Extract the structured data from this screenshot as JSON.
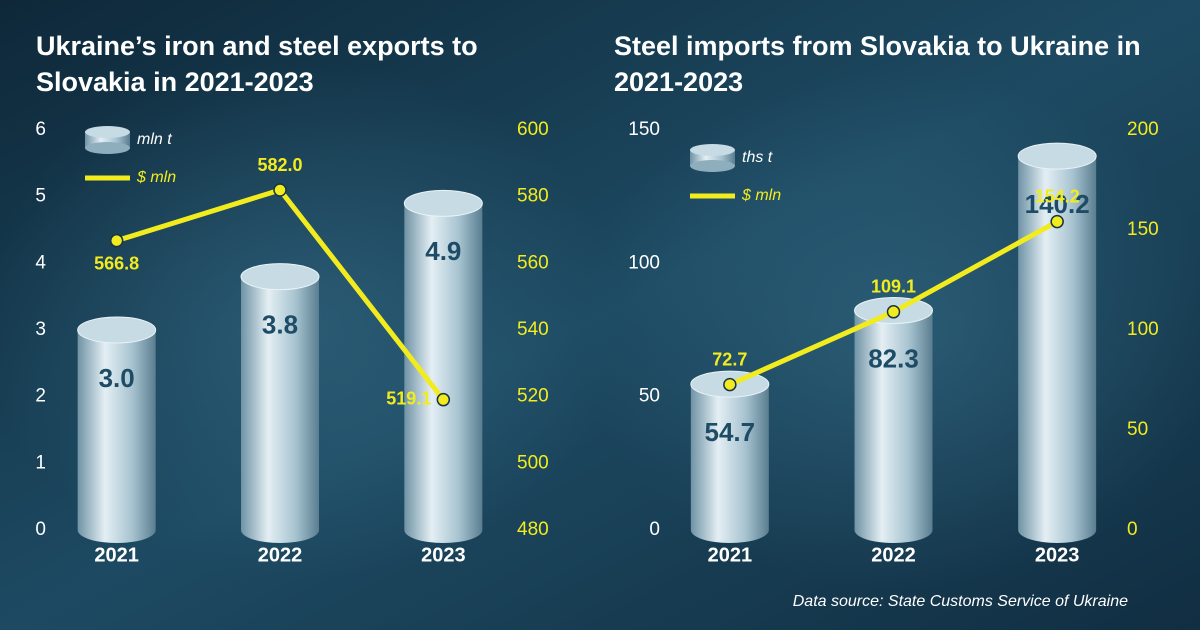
{
  "chart_data": [
    {
      "type": "bar",
      "title": "Ukraine’s iron and steel exports to Slovakia in 2021-2023",
      "categories": [
        "2021",
        "2022",
        "2023"
      ],
      "series": [
        {
          "name": "mln t",
          "color": "#b9d2dd",
          "values": [
            3.0,
            3.8,
            4.9
          ],
          "value_labels": [
            "3.0",
            "3.8",
            "4.9"
          ]
        },
        {
          "name": "$ mln",
          "color": "#f2ec1f",
          "type": "line",
          "axis": "y2",
          "values": [
            566.8,
            582.0,
            519.1
          ],
          "value_labels": [
            "566.8",
            "582.0",
            "519.1"
          ]
        }
      ],
      "ylim": [
        0,
        6
      ],
      "yticks": [
        0,
        1,
        2,
        3,
        4,
        5,
        6
      ],
      "y2lim": [
        480,
        600
      ],
      "y2ticks": [
        480,
        500,
        520,
        540,
        560,
        580,
        600
      ],
      "grid": false,
      "legend": "top-left"
    },
    {
      "type": "bar",
      "title": "Steel imports from Slovakia to Ukraine in 2021-2023",
      "categories": [
        "2021",
        "2022",
        "2023"
      ],
      "series": [
        {
          "name": "ths t",
          "color": "#b9d2dd",
          "values": [
            54.7,
            82.3,
            140.2
          ]
        },
        {
          "name": "$ mln",
          "color": "#f2ec1f",
          "type": "line",
          "axis": "y2",
          "values": [
            72.7,
            109.1,
            154.2
          ]
        }
      ],
      "ylim": [
        0,
        150
      ],
      "yticks": [
        0,
        50,
        100,
        150
      ],
      "y2lim": [
        0,
        200
      ],
      "y2ticks": [
        0,
        50,
        100,
        150,
        200
      ],
      "grid": false,
      "legend": "top-left"
    }
  ],
  "source": "Data source: State Customs Service of Ukraine"
}
